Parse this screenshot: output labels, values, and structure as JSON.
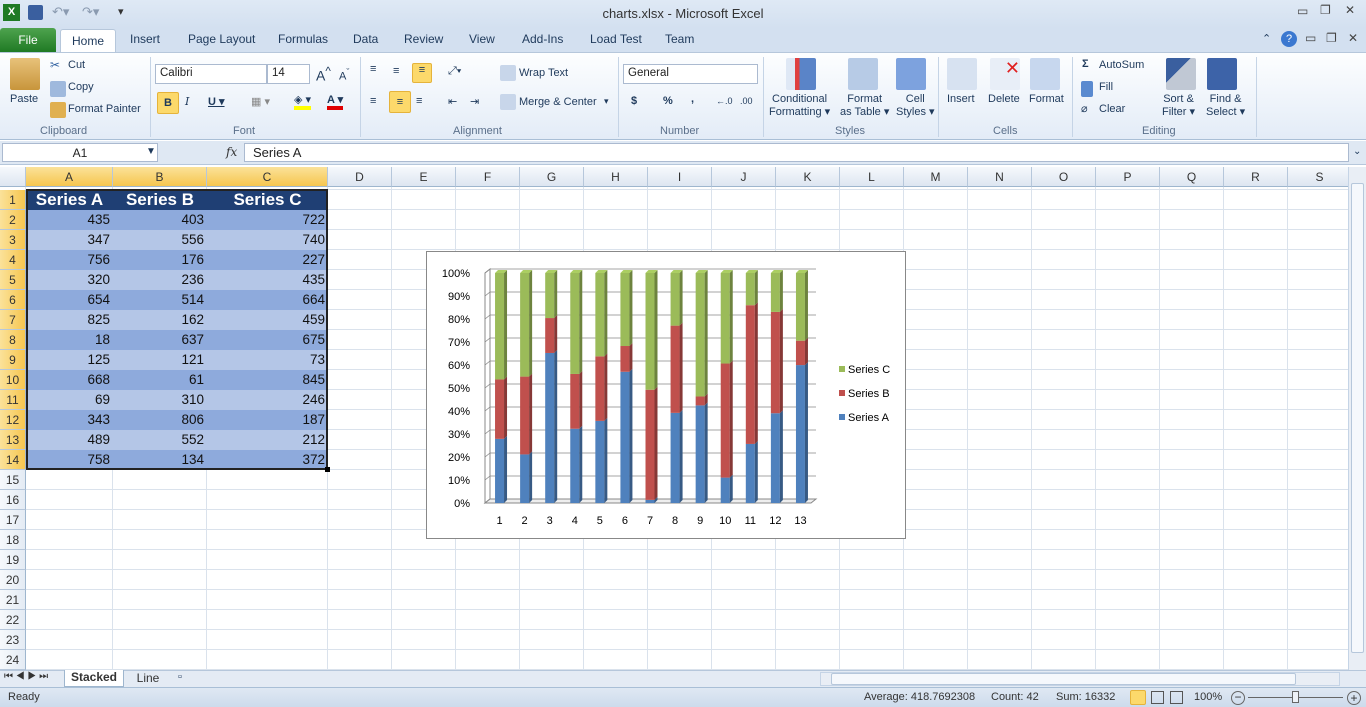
{
  "window": {
    "title": "charts.xlsx  -  Microsoft Excel"
  },
  "tabs": [
    "File",
    "Home",
    "Insert",
    "Page Layout",
    "Formulas",
    "Data",
    "Review",
    "View",
    "Add-Ins",
    "Load Test",
    "Team"
  ],
  "ribbon": {
    "clipboard": {
      "paste": "Paste",
      "cut": "Cut",
      "copy": "Copy",
      "format_painter": "Format Painter",
      "label": "Clipboard"
    },
    "font": {
      "name": "Calibri",
      "size": "14",
      "label": "Font",
      "bold_active": true
    },
    "alignment": {
      "wrap_text": "Wrap Text",
      "merge_center": "Merge & Center",
      "label": "Alignment"
    },
    "number": {
      "format": "General",
      "currency": "$",
      "percent": "%",
      "comma": ",",
      "label": "Number"
    },
    "styles": {
      "conditional": "Conditional",
      "conditional2": "Formatting",
      "format_table": "Format",
      "format_table2": "as Table",
      "cell_styles": "Cell",
      "cell_styles2": "Styles",
      "label": "Styles"
    },
    "cells": {
      "insert": "Insert",
      "delete": "Delete",
      "format": "Format",
      "label": "Cells"
    },
    "editing": {
      "autosum": "AutoSum",
      "fill": "Fill",
      "clear": "Clear",
      "sort": "Sort &",
      "sort2": "Filter",
      "find": "Find &",
      "find2": "Select",
      "label": "Editing"
    }
  },
  "formula_bar": {
    "name_box": "A1",
    "fx": "fx",
    "value": "Series A"
  },
  "columns": [
    "A",
    "B",
    "C",
    "D",
    "E",
    "F",
    "G",
    "H",
    "I",
    "J",
    "K",
    "L",
    "M",
    "N",
    "O",
    "P",
    "Q",
    "R",
    "S"
  ],
  "table": {
    "headers": [
      "Series A",
      "Series B",
      "Series C"
    ],
    "rows": [
      [
        435,
        403,
        722
      ],
      [
        347,
        556,
        740
      ],
      [
        756,
        176,
        227
      ],
      [
        320,
        236,
        435
      ],
      [
        654,
        514,
        664
      ],
      [
        825,
        162,
        459
      ],
      [
        18,
        637,
        675
      ],
      [
        125,
        121,
        73
      ],
      [
        668,
        61,
        845
      ],
      [
        69,
        310,
        246
      ],
      [
        343,
        806,
        187
      ],
      [
        489,
        552,
        212
      ],
      [
        758,
        134,
        372
      ]
    ]
  },
  "colors": {
    "series_a": "#4f81bd",
    "series_b": "#c0504d",
    "series_c": "#9bbb59",
    "header_fill": "#1f3f74",
    "band1": "#8eaadc",
    "band2": "#b4c6e7"
  },
  "chart_data": {
    "type": "bar",
    "stacking": "percent",
    "categories": [
      "1",
      "2",
      "3",
      "4",
      "5",
      "6",
      "7",
      "8",
      "9",
      "10",
      "11",
      "12",
      "13"
    ],
    "series": [
      {
        "name": "Series A",
        "values": [
          435,
          347,
          756,
          320,
          654,
          825,
          18,
          125,
          668,
          69,
          343,
          489,
          758
        ]
      },
      {
        "name": "Series B",
        "values": [
          403,
          556,
          176,
          236,
          514,
          162,
          637,
          121,
          61,
          310,
          806,
          552,
          134
        ]
      },
      {
        "name": "Series C",
        "values": [
          722,
          740,
          227,
          435,
          664,
          459,
          675,
          73,
          845,
          246,
          187,
          212,
          372
        ]
      }
    ],
    "y_ticks": [
      "0%",
      "10%",
      "20%",
      "30%",
      "40%",
      "50%",
      "60%",
      "70%",
      "80%",
      "90%",
      "100%"
    ],
    "ylim": [
      0,
      100
    ],
    "grid": true,
    "legend": "right"
  },
  "sheets": [
    "Stacked",
    "Line"
  ],
  "status": {
    "ready": "Ready",
    "average": "Average: 418.7692308",
    "count": "Count: 42",
    "sum": "Sum: 16332",
    "zoom": "100%"
  }
}
